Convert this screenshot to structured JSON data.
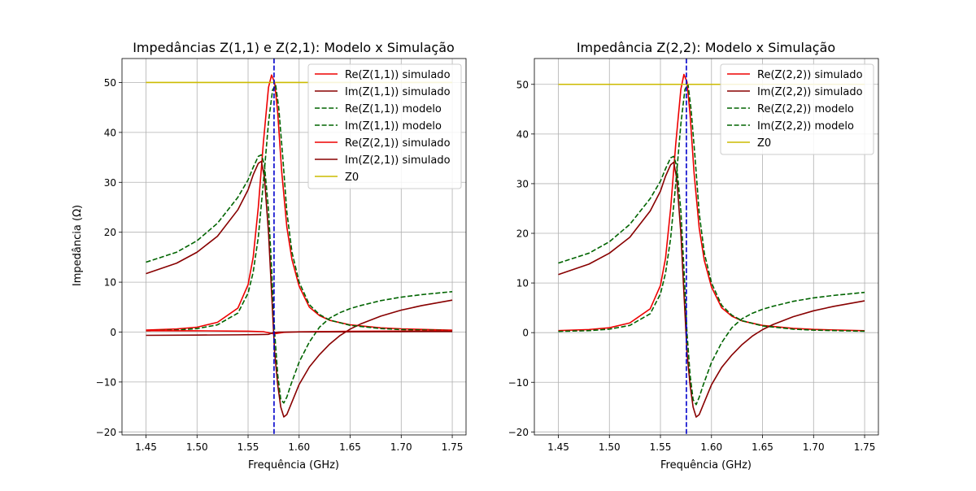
{
  "chart_data": [
    {
      "type": "line",
      "title": "Impedâncias Z(1,1) e Z(2,1): Modelo x Simulação",
      "xlabel": "Frequência (GHz)",
      "ylabel": "Impedância (Ω)",
      "xlim": [
        1.4265,
        1.7635
      ],
      "ylim": [
        -20.6,
        54.8
      ],
      "xticks": [
        1.45,
        1.5,
        1.55,
        1.6,
        1.65,
        1.7,
        1.75
      ],
      "xtick_labels": [
        "1.45",
        "1.50",
        "1.55",
        "1.60",
        "1.65",
        "1.70",
        "1.75"
      ],
      "yticks": [
        -20,
        -10,
        0,
        10,
        20,
        30,
        40,
        50
      ],
      "ytick_labels": [
        "−20",
        "−10",
        "0",
        "10",
        "20",
        "30",
        "40",
        "50"
      ],
      "grid": true,
      "legend_position": "top-right",
      "vline": {
        "x": 1.57542,
        "color": "#0000cc"
      },
      "series": [
        {
          "name": "Re(Z(1,1)) simulado",
          "color": "#ee0000",
          "dash": "solid",
          "points": [
            [
              1.45,
              0.4
            ],
            [
              1.48,
              0.62
            ],
            [
              1.5,
              0.98
            ],
            [
              1.52,
              1.95
            ],
            [
              1.54,
              4.8
            ],
            [
              1.55,
              9.5
            ],
            [
              1.555,
              15
            ],
            [
              1.56,
              25
            ],
            [
              1.565,
              38
            ],
            [
              1.57,
              49
            ],
            [
              1.573,
              51.5
            ],
            [
              1.576,
              50
            ],
            [
              1.579,
              44
            ],
            [
              1.583,
              32
            ],
            [
              1.588,
              21
            ],
            [
              1.593,
              14.5
            ],
            [
              1.6,
              9.2
            ],
            [
              1.61,
              5.0
            ],
            [
              1.62,
              3.3
            ],
            [
              1.63,
              2.35
            ],
            [
              1.65,
              1.45
            ],
            [
              1.68,
              0.85
            ],
            [
              1.7,
              0.65
            ],
            [
              1.75,
              0.38
            ]
          ]
        },
        {
          "name": "Im(Z(1,1)) simulado",
          "color": "#880000",
          "dash": "solid",
          "points": [
            [
              1.45,
              11.7
            ],
            [
              1.48,
              13.8
            ],
            [
              1.5,
              16.0
            ],
            [
              1.52,
              19.2
            ],
            [
              1.54,
              24.5
            ],
            [
              1.55,
              28.5
            ],
            [
              1.555,
              31.5
            ],
            [
              1.56,
              33.8
            ],
            [
              1.563,
              34.2
            ],
            [
              1.566,
              31.0
            ],
            [
              1.57,
              20.0
            ],
            [
              1.573,
              8.0
            ],
            [
              1.576,
              -4.0
            ],
            [
              1.579,
              -10.5
            ],
            [
              1.582,
              -15.0
            ],
            [
              1.585,
              -17.0
            ],
            [
              1.588,
              -16.5
            ],
            [
              1.592,
              -14.5
            ],
            [
              1.6,
              -10.5
            ],
            [
              1.61,
              -7.0
            ],
            [
              1.62,
              -4.5
            ],
            [
              1.63,
              -2.4
            ],
            [
              1.64,
              -0.7
            ],
            [
              1.65,
              0.6
            ],
            [
              1.66,
              1.6
            ],
            [
              1.68,
              3.2
            ],
            [
              1.7,
              4.4
            ],
            [
              1.72,
              5.3
            ],
            [
              1.75,
              6.4
            ]
          ]
        },
        {
          "name": "Re(Z(1,1)) modelo",
          "color": "#006400",
          "dash": "dashed",
          "points": [
            [
              1.45,
              0.25
            ],
            [
              1.48,
              0.4
            ],
            [
              1.5,
              0.7
            ],
            [
              1.52,
              1.45
            ],
            [
              1.54,
              3.8
            ],
            [
              1.55,
              7.8
            ],
            [
              1.555,
              12
            ],
            [
              1.56,
              19
            ],
            [
              1.565,
              30
            ],
            [
              1.57,
              42
            ],
            [
              1.574,
              48.5
            ],
            [
              1.577,
              49.5
            ],
            [
              1.58,
              45
            ],
            [
              1.584,
              35
            ],
            [
              1.588,
              24
            ],
            [
              1.593,
              16
            ],
            [
              1.6,
              10.0
            ],
            [
              1.61,
              5.5
            ],
            [
              1.62,
              3.5
            ],
            [
              1.63,
              2.4
            ],
            [
              1.65,
              1.35
            ],
            [
              1.68,
              0.7
            ],
            [
              1.7,
              0.5
            ],
            [
              1.75,
              0.28
            ]
          ]
        },
        {
          "name": "Im(Z(1,1)) modelo",
          "color": "#006400",
          "dash": "dashed",
          "points": [
            [
              1.45,
              14.0
            ],
            [
              1.48,
              16.0
            ],
            [
              1.5,
              18.3
            ],
            [
              1.52,
              21.8
            ],
            [
              1.54,
              27.0
            ],
            [
              1.55,
              30.5
            ],
            [
              1.555,
              33.0
            ],
            [
              1.56,
              35.2
            ],
            [
              1.563,
              35.5
            ],
            [
              1.566,
              33.5
            ],
            [
              1.57,
              24.5
            ],
            [
              1.573,
              13.0
            ],
            [
              1.576,
              0.0
            ],
            [
              1.579,
              -8.5
            ],
            [
              1.582,
              -13.5
            ],
            [
              1.585,
              -14.2
            ],
            [
              1.588,
              -13.0
            ],
            [
              1.592,
              -10.5
            ],
            [
              1.6,
              -6.0
            ],
            [
              1.61,
              -2.0
            ],
            [
              1.62,
              1.0
            ],
            [
              1.63,
              2.8
            ],
            [
              1.64,
              3.9
            ],
            [
              1.65,
              4.7
            ],
            [
              1.66,
              5.3
            ],
            [
              1.68,
              6.3
            ],
            [
              1.7,
              7.0
            ],
            [
              1.72,
              7.5
            ],
            [
              1.75,
              8.1
            ]
          ]
        },
        {
          "name": "Re(Z(2,1)) simulado",
          "color": "#ee0000",
          "dash": "solid",
          "points": [
            [
              1.45,
              0.28
            ],
            [
              1.5,
              0.26
            ],
            [
              1.55,
              0.18
            ],
            [
              1.565,
              0.08
            ],
            [
              1.575,
              -0.35
            ],
            [
              1.585,
              -0.05
            ],
            [
              1.6,
              0.05
            ],
            [
              1.65,
              0.15
            ],
            [
              1.7,
              0.2
            ],
            [
              1.75,
              0.25
            ]
          ]
        },
        {
          "name": "Im(Z(2,1)) simulado",
          "color": "#880000",
          "dash": "solid",
          "points": [
            [
              1.45,
              -0.65
            ],
            [
              1.5,
              -0.6
            ],
            [
              1.54,
              -0.55
            ],
            [
              1.56,
              -0.5
            ],
            [
              1.57,
              -0.45
            ],
            [
              1.575,
              -0.1
            ],
            [
              1.58,
              0.0
            ],
            [
              1.6,
              0.02
            ],
            [
              1.65,
              0.05
            ],
            [
              1.7,
              0.1
            ],
            [
              1.75,
              0.12
            ]
          ]
        },
        {
          "name": "Z0",
          "color": "#ccbb00",
          "dash": "solid",
          "points": [
            [
              1.45,
              50
            ],
            [
              1.75,
              50
            ]
          ]
        }
      ]
    },
    {
      "type": "line",
      "title": "Impedância Z(2,2): Modelo x Simulação",
      "xlabel": "Frequência (GHz)",
      "ylabel": "",
      "xlim": [
        1.4265,
        1.7635
      ],
      "ylim": [
        -20.6,
        55.2
      ],
      "xticks": [
        1.45,
        1.5,
        1.55,
        1.6,
        1.65,
        1.7,
        1.75
      ],
      "xtick_labels": [
        "1.45",
        "1.50",
        "1.55",
        "1.60",
        "1.65",
        "1.70",
        "1.75"
      ],
      "yticks": [
        -20,
        -10,
        0,
        10,
        20,
        30,
        40,
        50
      ],
      "ytick_labels": [
        "−20",
        "−10",
        "0",
        "10",
        "20",
        "30",
        "40",
        "50"
      ],
      "grid": true,
      "legend_position": "top-right",
      "vline": {
        "x": 1.57542,
        "color": "#0000cc"
      },
      "series": [
        {
          "name": "Re(Z(2,2)) simulado",
          "color": "#ee0000",
          "dash": "solid",
          "points": [
            [
              1.45,
              0.4
            ],
            [
              1.48,
              0.62
            ],
            [
              1.5,
              0.98
            ],
            [
              1.52,
              1.95
            ],
            [
              1.54,
              4.8
            ],
            [
              1.55,
              9.5
            ],
            [
              1.555,
              15
            ],
            [
              1.56,
              25
            ],
            [
              1.565,
              38
            ],
            [
              1.57,
              49
            ],
            [
              1.573,
              52.0
            ],
            [
              1.576,
              50.5
            ],
            [
              1.579,
              44
            ],
            [
              1.583,
              32
            ],
            [
              1.588,
              21
            ],
            [
              1.593,
              14.5
            ],
            [
              1.6,
              9.2
            ],
            [
              1.61,
              5.0
            ],
            [
              1.62,
              3.3
            ],
            [
              1.63,
              2.35
            ],
            [
              1.65,
              1.45
            ],
            [
              1.68,
              0.85
            ],
            [
              1.7,
              0.65
            ],
            [
              1.75,
              0.38
            ]
          ]
        },
        {
          "name": "Im(Z(2,2)) simulado",
          "color": "#880000",
          "dash": "solid",
          "points": [
            [
              1.45,
              11.7
            ],
            [
              1.48,
              13.8
            ],
            [
              1.5,
              16.0
            ],
            [
              1.52,
              19.2
            ],
            [
              1.54,
              24.5
            ],
            [
              1.55,
              28.5
            ],
            [
              1.555,
              31.5
            ],
            [
              1.56,
              33.8
            ],
            [
              1.563,
              34.3
            ],
            [
              1.566,
              31.0
            ],
            [
              1.57,
              20.0
            ],
            [
              1.573,
              8.0
            ],
            [
              1.576,
              -4.0
            ],
            [
              1.579,
              -10.5
            ],
            [
              1.582,
              -15.0
            ],
            [
              1.585,
              -17.0
            ],
            [
              1.588,
              -16.5
            ],
            [
              1.592,
              -14.5
            ],
            [
              1.6,
              -10.5
            ],
            [
              1.61,
              -7.0
            ],
            [
              1.62,
              -4.5
            ],
            [
              1.63,
              -2.4
            ],
            [
              1.64,
              -0.7
            ],
            [
              1.65,
              0.6
            ],
            [
              1.66,
              1.6
            ],
            [
              1.68,
              3.2
            ],
            [
              1.7,
              4.4
            ],
            [
              1.72,
              5.3
            ],
            [
              1.75,
              6.4
            ]
          ]
        },
        {
          "name": "Re(Z(2,2)) modelo",
          "color": "#006400",
          "dash": "dashed",
          "points": [
            [
              1.45,
              0.25
            ],
            [
              1.48,
              0.4
            ],
            [
              1.5,
              0.7
            ],
            [
              1.52,
              1.45
            ],
            [
              1.54,
              3.8
            ],
            [
              1.55,
              7.8
            ],
            [
              1.555,
              12
            ],
            [
              1.56,
              19
            ],
            [
              1.565,
              30
            ],
            [
              1.57,
              42
            ],
            [
              1.574,
              49.0
            ],
            [
              1.577,
              50.0
            ],
            [
              1.58,
              45
            ],
            [
              1.584,
              35
            ],
            [
              1.588,
              24
            ],
            [
              1.593,
              16
            ],
            [
              1.6,
              10.0
            ],
            [
              1.61,
              5.5
            ],
            [
              1.62,
              3.5
            ],
            [
              1.63,
              2.4
            ],
            [
              1.65,
              1.35
            ],
            [
              1.68,
              0.7
            ],
            [
              1.7,
              0.5
            ],
            [
              1.75,
              0.28
            ]
          ]
        },
        {
          "name": "Im(Z(2,2)) modelo",
          "color": "#006400",
          "dash": "dashed",
          "points": [
            [
              1.45,
              14.0
            ],
            [
              1.48,
              16.0
            ],
            [
              1.5,
              18.3
            ],
            [
              1.52,
              21.8
            ],
            [
              1.54,
              27.0
            ],
            [
              1.55,
              30.5
            ],
            [
              1.555,
              33.0
            ],
            [
              1.56,
              35.2
            ],
            [
              1.563,
              35.5
            ],
            [
              1.566,
              33.5
            ],
            [
              1.57,
              24.5
            ],
            [
              1.573,
              13.0
            ],
            [
              1.576,
              0.0
            ],
            [
              1.579,
              -8.5
            ],
            [
              1.582,
              -13.5
            ],
            [
              1.585,
              -14.5
            ],
            [
              1.588,
              -13.0
            ],
            [
              1.592,
              -10.5
            ],
            [
              1.6,
              -6.0
            ],
            [
              1.61,
              -2.0
            ],
            [
              1.62,
              1.0
            ],
            [
              1.63,
              2.8
            ],
            [
              1.64,
              3.9
            ],
            [
              1.65,
              4.7
            ],
            [
              1.66,
              5.3
            ],
            [
              1.68,
              6.3
            ],
            [
              1.7,
              7.0
            ],
            [
              1.72,
              7.5
            ],
            [
              1.75,
              8.1
            ]
          ]
        },
        {
          "name": "Z0",
          "color": "#ccbb00",
          "dash": "solid",
          "points": [
            [
              1.45,
              50
            ],
            [
              1.75,
              50
            ]
          ]
        }
      ]
    }
  ]
}
